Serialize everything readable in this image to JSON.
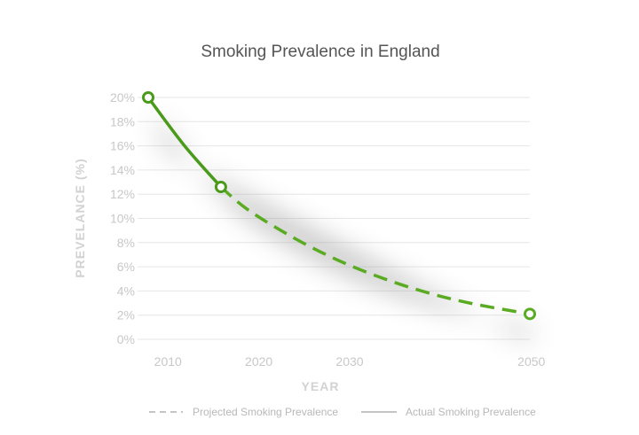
{
  "chart_data": {
    "type": "line",
    "title": "Smoking Prevalence in England",
    "xlabel": "YEAR",
    "ylabel": "PREVELANCE (%)",
    "xlim": [
      2009,
      2051
    ],
    "ylim": [
      0,
      20
    ],
    "x_ticks": [
      2010,
      2020,
      2030,
      2050
    ],
    "x_tick_labels": [
      "2010",
      "2020",
      "2030",
      "2050"
    ],
    "y_ticks": [
      0,
      2,
      4,
      6,
      8,
      10,
      12,
      14,
      16,
      18,
      20
    ],
    "y_tick_labels": [
      "0%",
      "2%",
      "4%",
      "6%",
      "8%",
      "10%",
      "12%",
      "14%",
      "16%",
      "18%",
      "20%"
    ],
    "grid": true,
    "legend_position": "bottom",
    "series": [
      {
        "name": "Actual Smoking Prevalence",
        "style": "solid",
        "color": "#4a9a1c",
        "x": [
          2009,
          2013,
          2017
        ],
        "y": [
          20,
          16.0,
          12.6
        ]
      },
      {
        "name": "Projected Smoking Prevalence",
        "style": "dashed",
        "color": "#5aaa22",
        "x": [
          2017,
          2020,
          2025,
          2030,
          2035,
          2040,
          2045,
          2051
        ],
        "y": [
          12.6,
          10.7,
          8.4,
          6.5,
          5.0,
          3.8,
          2.9,
          2.1
        ]
      }
    ],
    "markers": [
      {
        "x": 2009,
        "y": 20
      },
      {
        "x": 2017,
        "y": 12.6
      },
      {
        "x": 2051,
        "y": 2.1
      }
    ]
  }
}
